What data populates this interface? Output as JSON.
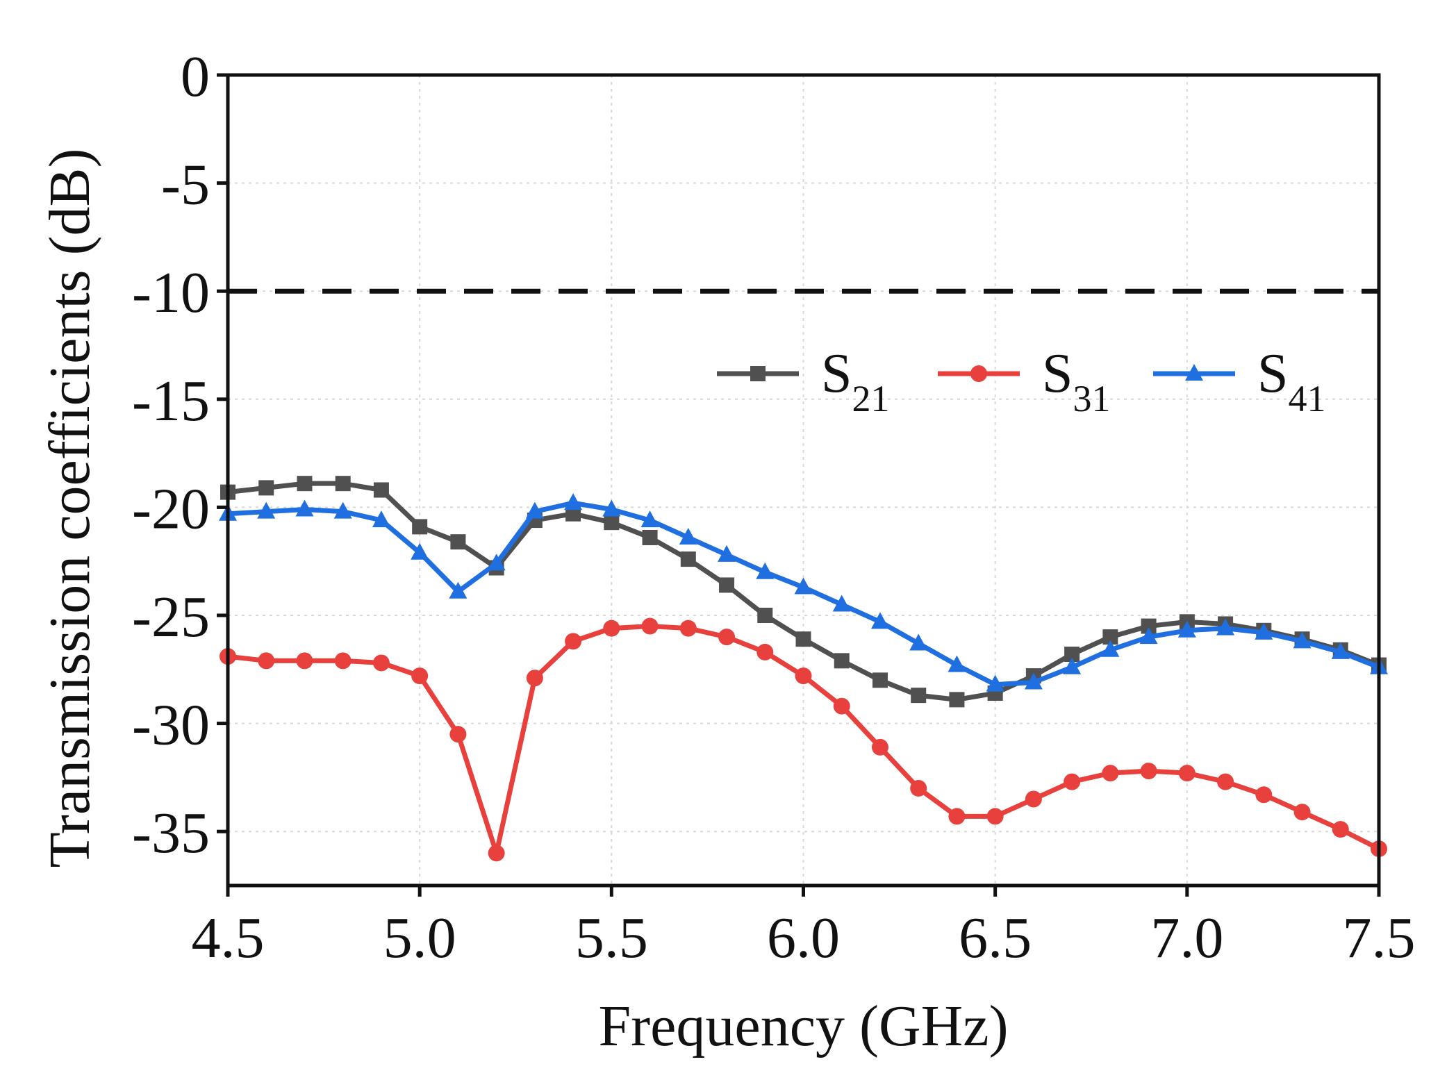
{
  "chart_data": {
    "type": "line",
    "xlabel": "Frequency (GHz)",
    "ylabel": "Transmission coefficients  (dB)",
    "xlim": [
      4.5,
      7.5
    ],
    "ylim": [
      -37.5,
      0
    ],
    "x_ticks": [
      4.5,
      5.0,
      5.5,
      6.0,
      6.5,
      7.0,
      7.5
    ],
    "x_tick_labels": [
      "4.5",
      "5.0",
      "5.5",
      "6.0",
      "6.5",
      "7.0",
      "7.5"
    ],
    "y_ticks": [
      0,
      -5,
      -10,
      -15,
      -20,
      -25,
      -30,
      -35
    ],
    "y_tick_labels": [
      "0",
      "-5",
      "-10",
      "-15",
      "-20",
      "-25",
      "-30",
      "-35"
    ],
    "grid": true,
    "reference_line": {
      "y": -10,
      "style": "dashed",
      "color": "#111111"
    },
    "legend": {
      "placement": "upper-right"
    },
    "x": [
      4.5,
      4.6,
      4.7,
      4.8,
      4.9,
      5.0,
      5.1,
      5.2,
      5.3,
      5.4,
      5.5,
      5.6,
      5.7,
      5.8,
      5.9,
      6.0,
      6.1,
      6.2,
      6.3,
      6.4,
      6.5,
      6.6,
      6.7,
      6.8,
      6.9,
      7.0,
      7.1,
      7.2,
      7.3,
      7.4,
      7.5
    ],
    "series": [
      {
        "name": "S21",
        "label_main": "S",
        "label_sub": "21",
        "color": "#505050",
        "marker": "square",
        "values": [
          -19.3,
          -19.1,
          -18.9,
          -18.9,
          -19.2,
          -20.9,
          -21.6,
          -22.8,
          -20.6,
          -20.3,
          -20.7,
          -21.4,
          -22.4,
          -23.6,
          -25.0,
          -26.1,
          -27.1,
          -28.0,
          -28.7,
          -28.9,
          -28.6,
          -27.8,
          -26.8,
          -26.0,
          -25.5,
          -25.3,
          -25.4,
          -25.7,
          -26.1,
          -26.6,
          -27.3
        ]
      },
      {
        "name": "S31",
        "label_main": "S",
        "label_sub": "31",
        "color": "#e8403c",
        "marker": "circle",
        "values": [
          -26.9,
          -27.1,
          -27.1,
          -27.1,
          -27.2,
          -27.8,
          -30.5,
          -36.0,
          -27.9,
          -26.2,
          -25.6,
          -25.5,
          -25.6,
          -26.0,
          -26.7,
          -27.8,
          -29.2,
          -31.1,
          -33.0,
          -34.3,
          -34.3,
          -33.5,
          -32.7,
          -32.3,
          -32.2,
          -32.3,
          -32.7,
          -33.3,
          -34.1,
          -34.9,
          -35.8
        ]
      },
      {
        "name": "S41",
        "label_main": "S",
        "label_sub": "41",
        "color": "#1f6fe0",
        "marker": "triangle",
        "values": [
          -20.3,
          -20.2,
          -20.1,
          -20.2,
          -20.6,
          -22.1,
          -23.9,
          -22.6,
          -20.2,
          -19.8,
          -20.1,
          -20.6,
          -21.4,
          -22.2,
          -23.0,
          -23.7,
          -24.5,
          -25.3,
          -26.3,
          -27.3,
          -28.2,
          -28.1,
          -27.4,
          -26.6,
          -26.0,
          -25.7,
          -25.6,
          -25.8,
          -26.2,
          -26.7,
          -27.4
        ]
      }
    ]
  }
}
